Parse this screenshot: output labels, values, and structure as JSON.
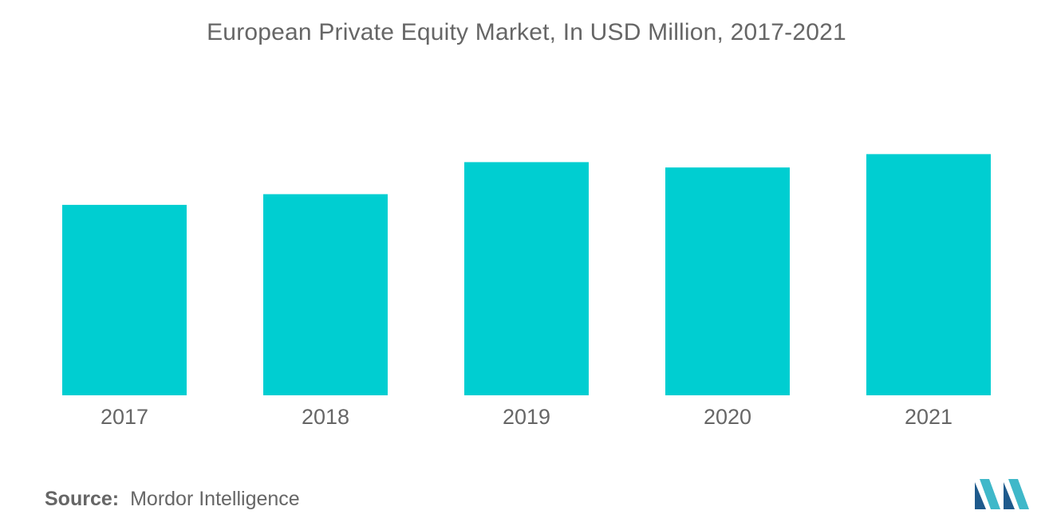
{
  "chart_data": {
    "type": "bar",
    "title": "European Private Equity Market, In USD Million, 2017-2021",
    "categories": [
      "2017",
      "2018",
      "2019",
      "2020",
      "2021"
    ],
    "series": [
      {
        "values": [
          214,
          226,
          262,
          256,
          271
        ]
      }
    ],
    "xlabel": "",
    "ylabel": "",
    "ylim": [
      0,
      300
    ],
    "grid": false,
    "legend": "none",
    "bar_color": "#00CED1"
  },
  "source": {
    "label": "Source:",
    "text": "Mordor Intelligence"
  },
  "logo": {
    "icon": "mordor-intelligence-logo",
    "colors": [
      "#1E5A8C",
      "#3FB8C9"
    ]
  }
}
